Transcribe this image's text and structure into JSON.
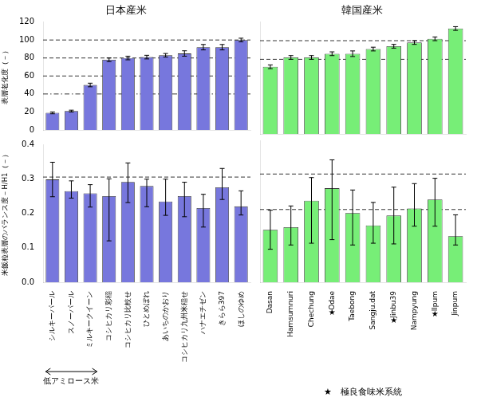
{
  "chart_data": [
    {
      "type": "bar",
      "title": "日本産米",
      "y_label": "表層老化度（－）",
      "categories": [
        "シルキーパール",
        "スノーパール",
        "ミルキークイーン",
        "コシヒカリ彩稲",
        "コシヒカリ比較せ",
        "ひとめぼれ",
        "あいちのかおり",
        "コシヒカリ九州米稲せ",
        "ハナエチゼン",
        "きらら397",
        "ほしのゆめ"
      ],
      "values": [
        19,
        21,
        50,
        78,
        80,
        81,
        83,
        85,
        92,
        92,
        100
      ],
      "errors": [
        1,
        1,
        2,
        2,
        2,
        2,
        2,
        3,
        3,
        3,
        2
      ],
      "color": "#7777dd",
      "ylim": [
        0,
        120
      ],
      "yticks": [
        0,
        20,
        40,
        60,
        80,
        100,
        120
      ],
      "reference_lines": [
        {
          "value": 40,
          "line_style": "dashdot"
        },
        {
          "value": 60,
          "line_style": "dashed"
        },
        {
          "value": 80,
          "line_style": "dashed"
        },
        {
          "value": 100,
          "line_style": "dashed"
        }
      ],
      "grid": false,
      "tick_labels": "y"
    },
    {
      "type": "bar",
      "title": "韓国産米",
      "categories": [
        "Dasan",
        "Hamsumnuri",
        "Chechung",
        "Odae",
        "Taebong",
        "Sangju.dat",
        "Jinbu39",
        "Nampyung",
        "Ilpum",
        "Jinpum"
      ],
      "values": [
        72,
        82,
        82,
        86,
        86,
        91,
        94,
        98,
        102,
        113
      ],
      "errors": [
        2,
        2,
        2,
        2,
        3,
        2,
        2,
        2,
        2,
        2
      ],
      "color": "#77ee77",
      "ylim": [
        0,
        120
      ],
      "yticks": [
        0,
        20,
        40,
        60,
        80,
        100,
        120
      ],
      "reference_lines": [
        {
          "value": 80,
          "line_style": "dashed"
        },
        {
          "value": 100,
          "line_style": "dashed"
        }
      ],
      "grid": false,
      "tick_labels": false
    },
    {
      "type": "bar",
      "y_label": "米飯粒表層のバランス度－H/H1（－）",
      "categories": [
        "シルキーパール",
        "スノーパール",
        "ミルキークイーン",
        "コシヒカリ彩稲",
        "コシヒカリ比較せ",
        "ひとめぼれ",
        "あいちのかおり",
        "コシヒカリ九州米稲せ",
        "ハナエチゼン",
        "きらら397",
        "ほしのゆめ"
      ],
      "values": [
        0.298,
        0.264,
        0.258,
        0.25,
        0.291,
        0.279,
        0.234,
        0.25,
        0.215,
        0.275,
        0.22
      ],
      "errors_upper": [
        0.05,
        0.03,
        0.025,
        0.05,
        0.055,
        0.02,
        0.065,
        0.04,
        0.04,
        0.055,
        0.045
      ],
      "errors_lower": [
        0.05,
        0.02,
        0.04,
        0.13,
        0.06,
        0.06,
        0.04,
        0.06,
        0.055,
        0.035,
        0.025
      ],
      "color": "#7777dd",
      "ylim": [
        0.0,
        0.4
      ],
      "yticks": [
        {
          "value": 0.0,
          "label": "0.0"
        },
        {
          "value": 0.1,
          "label": "0.1"
        },
        {
          "value": 0.2,
          "label": "0.2"
        },
        {
          "value": 0.3,
          "label": "0.3"
        },
        {
          "value": 0.4,
          "label": "0.4"
        }
      ],
      "reference_lines": [
        {
          "value": 0.305,
          "line_style": "dashed"
        }
      ],
      "grid": false,
      "annotations": [
        {
          "text": "低アミロース米",
          "categories": [
            "シルキーパール",
            "スノーパール",
            "ミルキークイーン"
          ]
        }
      ]
    },
    {
      "type": "bar",
      "categories": [
        "Dasan",
        "Hamsumnuri",
        "Chechung",
        "Odae",
        "Taebong",
        "Sangju.dat",
        "Jinbu39",
        "Nampyung",
        "Ilpum",
        "Jinpum"
      ],
      "values": [
        0.148,
        0.155,
        0.23,
        0.265,
        0.195,
        0.16,
        0.188,
        0.208,
        0.233,
        0.13
      ],
      "errors_upper": [
        0.055,
        0.06,
        0.065,
        0.08,
        0.065,
        0.065,
        0.08,
        0.07,
        0.06,
        0.06
      ],
      "errors_lower": [
        0.055,
        0.05,
        0.12,
        0.145,
        0.09,
        0.05,
        0.08,
        0.05,
        0.075,
        0.025
      ],
      "color": "#77ee77",
      "ylim": [
        0.0,
        0.4
      ],
      "yticks": [
        {
          "value": 0.0,
          "label": "0.0"
        },
        {
          "value": 0.1,
          "label": "0.1"
        },
        {
          "value": 0.2,
          "label": "0.2"
        },
        {
          "value": 0.3,
          "label": "0.3"
        },
        {
          "value": 0.4,
          "label": "0.4"
        }
      ],
      "reference_lines": [
        {
          "value": 0.305,
          "line_style": "dashed"
        },
        {
          "value": 0.205,
          "line_style": "dashed"
        }
      ],
      "grid": false,
      "tick_labels": "x",
      "annotations": [
        {
          "text": "★",
          "category": "Odae"
        },
        {
          "text": "★",
          "category": "Jinbu39"
        },
        {
          "text": "★",
          "category": "Ilpum"
        },
        {
          "text": "★　極良食味米系統"
        }
      ]
    }
  ]
}
